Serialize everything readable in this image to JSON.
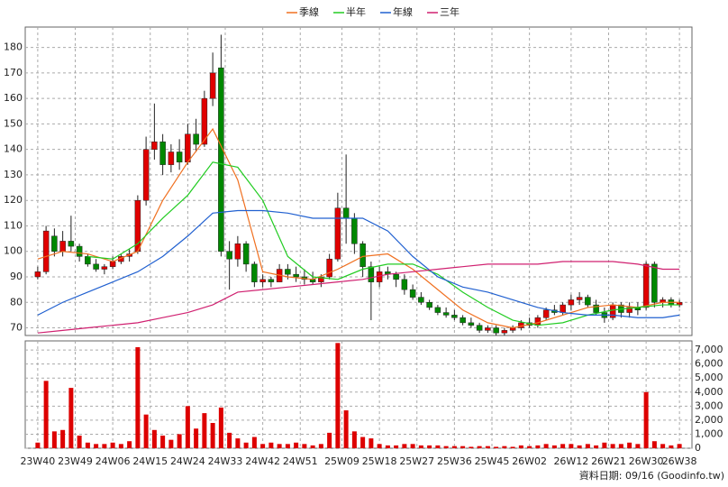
{
  "chart_data": [
    {
      "type": "candlestick",
      "x": [
        0,
        2,
        4,
        6,
        8,
        10,
        12,
        14,
        16,
        18,
        20,
        22,
        24,
        26,
        28,
        30,
        32,
        34,
        36,
        38,
        40,
        42,
        44,
        46,
        48,
        50,
        52,
        54,
        56,
        58,
        60,
        62,
        64,
        66,
        68,
        70,
        72,
        74,
        76,
        78,
        80,
        82,
        84,
        86,
        88,
        90,
        92,
        94,
        96,
        98,
        100,
        102,
        104,
        106,
        108,
        110,
        112,
        114,
        116,
        118,
        120,
        122,
        124,
        126,
        128,
        130,
        132,
        134,
        136,
        138,
        140,
        142,
        144,
        146,
        148,
        150,
        152,
        154
      ],
      "open": [
        90,
        92,
        106,
        100,
        104,
        102,
        98,
        95,
        93,
        94,
        96,
        98,
        100,
        120,
        140,
        143,
        134,
        139,
        135,
        146,
        142,
        160,
        172,
        100,
        97,
        103,
        95,
        88,
        89,
        88,
        93,
        91,
        90,
        89,
        88,
        90,
        97,
        117,
        113,
        103,
        94,
        88,
        92,
        91,
        89,
        85,
        82,
        80,
        78,
        76,
        75,
        74,
        72,
        71,
        69,
        70,
        68,
        69,
        70,
        72,
        71,
        74,
        77,
        76,
        79,
        81,
        82,
        79,
        76,
        74,
        79,
        76,
        78,
        78,
        95,
        80,
        81,
        79
      ],
      "high": [
        94,
        110,
        109,
        108,
        114,
        103,
        99,
        97,
        95,
        98,
        99,
        101,
        122,
        145,
        158,
        146,
        142,
        144,
        150,
        152,
        163,
        178,
        185,
        104,
        106,
        104,
        96,
        91,
        90,
        95,
        95,
        94,
        93,
        92,
        91,
        99,
        123,
        138,
        115,
        104,
        96,
        94,
        94,
        92,
        91,
        87,
        84,
        81,
        79,
        78,
        77,
        75,
        74,
        72,
        71,
        71,
        70,
        71,
        73,
        74,
        75,
        78,
        79,
        80,
        83,
        84,
        83,
        81,
        78,
        80,
        80,
        80,
        80,
        96,
        96,
        82,
        82,
        81
      ],
      "low": [
        89,
        91,
        98,
        98,
        100,
        96,
        94,
        92,
        91,
        93,
        95,
        96,
        99,
        118,
        136,
        130,
        131,
        132,
        134,
        139,
        141,
        157,
        98,
        85,
        94,
        92,
        86,
        86,
        86,
        88,
        89,
        88,
        87,
        87,
        86,
        89,
        96,
        103,
        99,
        90,
        73,
        86,
        89,
        86,
        83,
        81,
        79,
        77,
        75,
        74,
        73,
        71,
        70,
        68,
        68,
        67,
        67,
        68,
        69,
        70,
        70,
        73,
        75,
        75,
        77,
        79,
        78,
        75,
        72,
        73,
        74,
        74,
        75,
        77,
        78,
        78,
        78,
        78
      ],
      "close": [
        92,
        108,
        100,
        104,
        102,
        98,
        95,
        93,
        94,
        96,
        98,
        99,
        120,
        140,
        143,
        134,
        139,
        135,
        146,
        142,
        160,
        170,
        100,
        97,
        103,
        95,
        88,
        89,
        88,
        93,
        91,
        90,
        89,
        88,
        90,
        97,
        117,
        113,
        103,
        94,
        88,
        92,
        91,
        89,
        85,
        82,
        80,
        78,
        76,
        75,
        74,
        72,
        71,
        69,
        70,
        68,
        69,
        70,
        72,
        71,
        74,
        77,
        76,
        79,
        81,
        82,
        79,
        76,
        74,
        79,
        76,
        78,
        77,
        95,
        80,
        81,
        79,
        80
      ],
      "up_color": "#e00000",
      "down_color": "#008800",
      "series": [
        {
          "name": "季線",
          "color": "#f07020",
          "x": [
            0,
            6,
            12,
            18,
            24,
            30,
            36,
            42,
            48,
            54,
            60,
            66,
            72,
            78,
            84,
            90,
            96,
            102,
            108,
            114,
            120,
            126,
            132,
            138,
            144,
            150,
            154
          ],
          "values": [
            97,
            100,
            99,
            96,
            100,
            120,
            135,
            148,
            128,
            92,
            90,
            89,
            93,
            98,
            99,
            93,
            85,
            77,
            72,
            70,
            72,
            75,
            78,
            79,
            78,
            80,
            80
          ]
        },
        {
          "name": "半年",
          "color": "#22cc22",
          "x": [
            0,
            6,
            12,
            18,
            24,
            30,
            36,
            42,
            48,
            54,
            60,
            66,
            72,
            78,
            84,
            90,
            96,
            102,
            108,
            114,
            120,
            126,
            132,
            138,
            144,
            150,
            154
          ],
          "values": [
            null,
            null,
            98,
            97,
            103,
            113,
            122,
            135,
            133,
            120,
            98,
            90,
            89,
            93,
            95,
            95,
            91,
            84,
            78,
            73,
            71,
            72,
            75,
            77,
            78,
            79,
            79
          ]
        },
        {
          "name": "年線",
          "color": "#2060d0",
          "x": [
            0,
            6,
            12,
            18,
            24,
            30,
            36,
            42,
            48,
            54,
            60,
            66,
            72,
            78,
            84,
            90,
            96,
            102,
            108,
            114,
            120,
            126,
            132,
            138,
            144,
            150,
            154
          ],
          "values": [
            75,
            80,
            84,
            88,
            92,
            98,
            106,
            115,
            116,
            116,
            115,
            113,
            113,
            113,
            108,
            98,
            90,
            86,
            84,
            81,
            78,
            76,
            75,
            75,
            74,
            74,
            75
          ]
        },
        {
          "name": "三年",
          "color": "#d02070",
          "x": [
            0,
            6,
            12,
            18,
            24,
            30,
            36,
            42,
            48,
            54,
            60,
            66,
            72,
            78,
            84,
            90,
            96,
            102,
            108,
            114,
            120,
            126,
            132,
            138,
            144,
            150,
            154
          ],
          "values": [
            68,
            69,
            70,
            71,
            72,
            74,
            76,
            79,
            84,
            85,
            86,
            87,
            88,
            89,
            91,
            92,
            93,
            94,
            95,
            95,
            95,
            96,
            96,
            96,
            95,
            93,
            93
          ]
        }
      ],
      "xlim": [
        -3,
        157
      ],
      "ylim": [
        67,
        188
      ],
      "yticks": [
        70,
        80,
        90,
        100,
        110,
        120,
        130,
        140,
        150,
        160,
        170,
        180
      ],
      "grid": true
    },
    {
      "type": "bar",
      "x": [
        0,
        2,
        4,
        6,
        8,
        10,
        12,
        14,
        16,
        18,
        20,
        22,
        24,
        26,
        28,
        30,
        32,
        34,
        36,
        38,
        40,
        42,
        44,
        46,
        48,
        50,
        52,
        54,
        56,
        58,
        60,
        62,
        64,
        66,
        68,
        70,
        72,
        74,
        76,
        78,
        80,
        82,
        84,
        86,
        88,
        90,
        92,
        94,
        96,
        98,
        100,
        102,
        104,
        106,
        108,
        110,
        112,
        114,
        116,
        118,
        120,
        122,
        124,
        126,
        128,
        130,
        132,
        134,
        136,
        138,
        140,
        142,
        144,
        146,
        148,
        150,
        152,
        154
      ],
      "values": [
        400,
        4800,
        1200,
        1300,
        4300,
        900,
        400,
        300,
        300,
        400,
        300,
        500,
        7200,
        2400,
        1300,
        900,
        600,
        1000,
        3000,
        1400,
        2500,
        1800,
        2900,
        1100,
        700,
        400,
        800,
        300,
        400,
        300,
        300,
        400,
        300,
        200,
        300,
        1100,
        7500,
        2700,
        1200,
        800,
        700,
        300,
        200,
        200,
        300,
        300,
        200,
        200,
        200,
        150,
        150,
        150,
        100,
        150,
        150,
        100,
        150,
        100,
        200,
        150,
        200,
        300,
        200,
        300,
        300,
        200,
        300,
        200,
        400,
        300,
        300,
        400,
        300,
        4000,
        500,
        300,
        200,
        300
      ],
      "color": "#dd0000",
      "xlim": [
        -3,
        157
      ],
      "ylim": [
        0,
        7650
      ],
      "xticks": [
        {
          "value": 0,
          "label": "23W40"
        },
        {
          "value": 9,
          "label": "23W49"
        },
        {
          "value": 18,
          "label": "24W06"
        },
        {
          "value": 27,
          "label": "24W15"
        },
        {
          "value": 36,
          "label": "24W24"
        },
        {
          "value": 45,
          "label": "24W33"
        },
        {
          "value": 54,
          "label": "24W42"
        },
        {
          "value": 63,
          "label": "24W51"
        },
        {
          "value": 73,
          "label": "25W09"
        },
        {
          "value": 82,
          "label": "25W18"
        },
        {
          "value": 91,
          "label": "25W27"
        },
        {
          "value": 100,
          "label": "25W36"
        },
        {
          "value": 109,
          "label": "25W45"
        },
        {
          "value": 118,
          "label": "26W02"
        },
        {
          "value": 128,
          "label": "26W12"
        },
        {
          "value": 137,
          "label": "26W21"
        },
        {
          "value": 146,
          "label": "26W30"
        },
        {
          "value": 154,
          "label": "26W38"
        }
      ],
      "yticks": [
        0,
        {
          "value": 1000,
          "label": "1,000"
        },
        {
          "value": 2000,
          "label": "2,000"
        },
        {
          "value": 3000,
          "label": "3,000"
        },
        {
          "value": 4000,
          "label": "4,000"
        },
        {
          "value": 5000,
          "label": "5,000"
        },
        {
          "value": 6000,
          "label": "6,000"
        },
        {
          "value": 7000,
          "label": "7,000"
        }
      ],
      "grid": true
    }
  ],
  "source": "資料日期: 09/16 (Goodinfo.tw)"
}
